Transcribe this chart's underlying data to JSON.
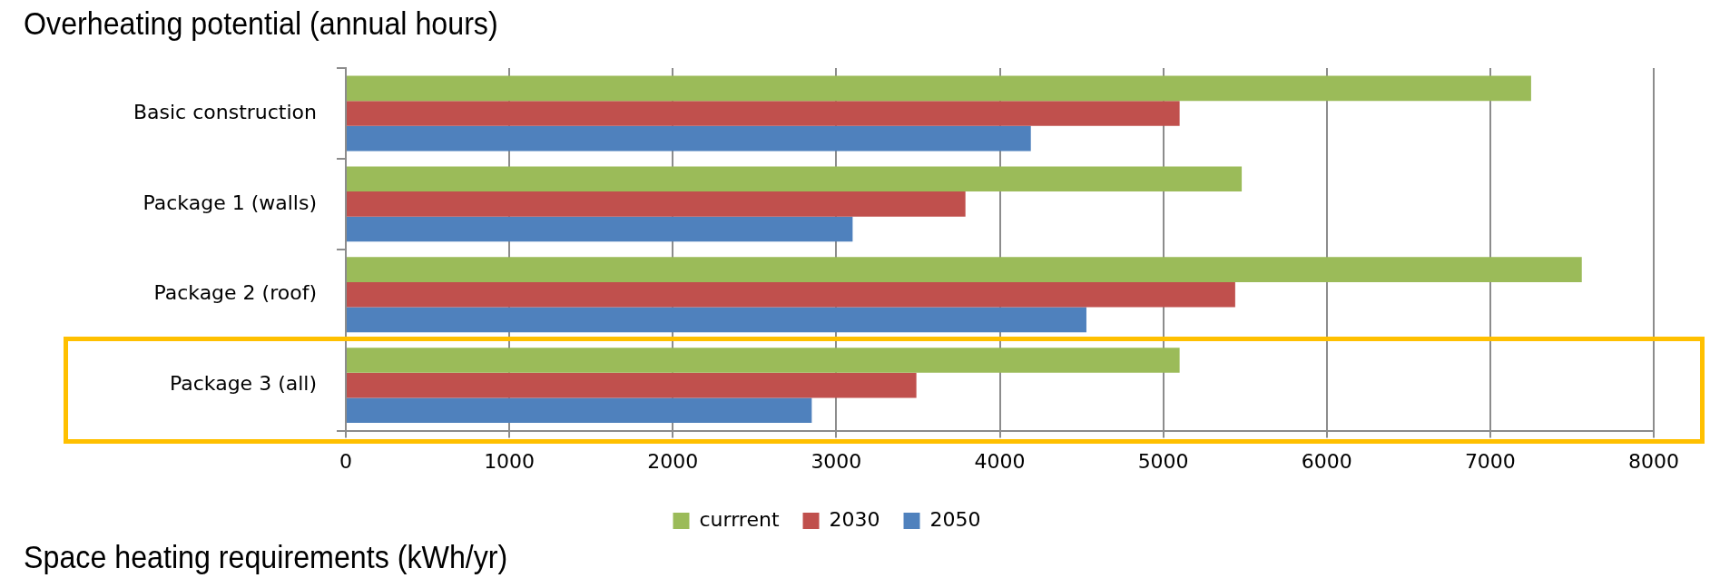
{
  "chart_data": {
    "type": "bar",
    "orientation": "horizontal",
    "title": "Overheating potential (annual hours)",
    "annotations": [
      "Space heating requirements (kWh/yr)"
    ],
    "categories": [
      "Basic construction",
      "Package 1 (walls)",
      "Package 2 (roof)",
      "Package 3 (all)"
    ],
    "series": [
      {
        "name": "currrent",
        "color": "#9bbb59",
        "values": [
          7250,
          5480,
          7560,
          5100
        ]
      },
      {
        "name": "2030",
        "color": "#c0504d",
        "values": [
          5100,
          3790,
          5440,
          3490
        ]
      },
      {
        "name": "2050",
        "color": "#4f81bd",
        "values": [
          4190,
          3100,
          4530,
          2850
        ]
      }
    ],
    "xlim": [
      0,
      8000
    ],
    "xticks": [
      0,
      1000,
      2000,
      3000,
      4000,
      5000,
      6000,
      7000,
      8000
    ],
    "grid": "x",
    "legend": "bottom"
  }
}
